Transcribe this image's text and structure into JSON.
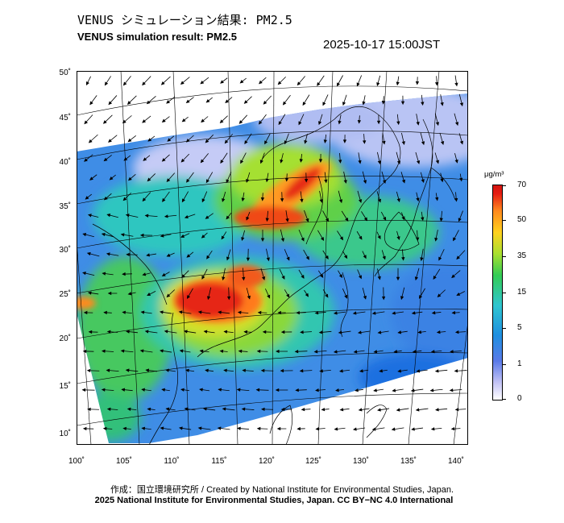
{
  "title_ja": "VENUS シミュレーション結果: PM2.5",
  "title_en": "VENUS simulation result: PM2.5",
  "timestamp": "2025-10-17 15:00JST",
  "lat_labels": [
    "50˚",
    "45˚",
    "40˚",
    "35˚",
    "30˚",
    "25˚",
    "20˚",
    "15˚",
    "10˚"
  ],
  "lon_labels": [
    "100˚",
    "105˚",
    "110˚",
    "115˚",
    "120˚",
    "125˚",
    "130˚",
    "135˚",
    "140˚"
  ],
  "colorbar": {
    "unit": "μg/m³",
    "labels": [
      "70",
      "50",
      "35",
      "15",
      "5",
      "1",
      "0"
    ],
    "colors": [
      "#d4140f",
      "#ff8a1e",
      "#ffd21e",
      "#33cc55",
      "#2fc6d0",
      "#1f8fe0",
      "#ffffff"
    ]
  },
  "credit": "作成：国立環境研究所 / Created by National Institute for Environmental Studies, Japan.",
  "license": "2025 National Institute for Environmental Studies, Japan. CC BY−NC 4.0 International"
}
